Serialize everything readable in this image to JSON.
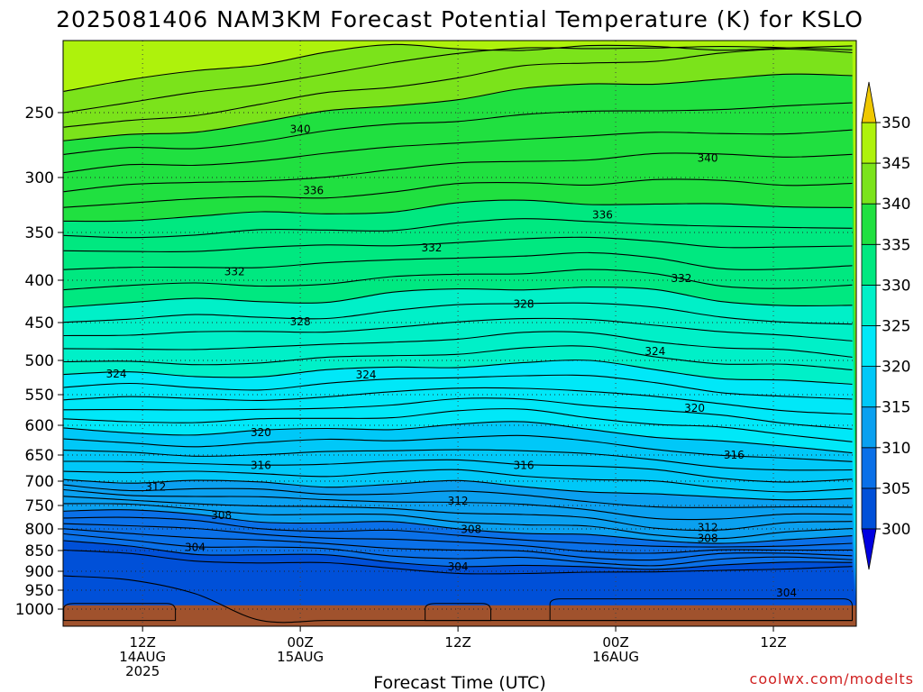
{
  "chart_data": {
    "type": "heatmap",
    "title": "2025081406 NAM3KM Forecast Potential Temperature (K) for KSLO",
    "xlabel": "Forecast Time (UTC)",
    "ylabel": "",
    "y_ticks": [
      250,
      300,
      350,
      400,
      450,
      500,
      550,
      600,
      650,
      700,
      750,
      800,
      850,
      900,
      950,
      1000
    ],
    "y_tick_labels": [
      "250",
      "300",
      "350",
      "400",
      "450",
      "500",
      "550",
      "600",
      "650",
      "700",
      "750",
      "800",
      "850",
      "900",
      "950",
      "1000"
    ],
    "ylim": [
      200,
      1030
    ],
    "x_range_hours": [
      0,
      60
    ],
    "x_ticks": [
      {
        "hour": 6,
        "line1": "12Z",
        "line2": "14AUG",
        "line3": "2025"
      },
      {
        "hour": 18,
        "line1": "00Z",
        "line2": "15AUG",
        "line3": ""
      },
      {
        "hour": 30,
        "line1": "12Z",
        "line2": "",
        "line3": ""
      },
      {
        "hour": 42,
        "line1": "00Z",
        "line2": "16AUG",
        "line3": ""
      },
      {
        "hour": 54,
        "line1": "12Z",
        "line2": "",
        "line3": ""
      }
    ],
    "colorbar": {
      "levels": [
        300,
        305,
        310,
        315,
        320,
        325,
        330,
        335,
        340,
        345,
        350
      ],
      "labels": [
        "300",
        "305",
        "310",
        "315",
        "320",
        "325",
        "330",
        "335",
        "340",
        "345",
        "350"
      ],
      "colors": [
        "#0000e0",
        "#0050d8",
        "#0a70e8",
        "#0aa0f0",
        "#00c8f8",
        "#00e8f8",
        "#00f0c8",
        "#00e880",
        "#20e040",
        "#7be31b",
        "#aef20c",
        "#f0f000",
        "#f0c800"
      ]
    },
    "contour_labels": [
      {
        "value": "340",
        "hour": 18,
        "p": 263
      },
      {
        "value": "336",
        "hour": 19,
        "p": 312
      },
      {
        "value": "336",
        "hour": 41,
        "p": 334
      },
      {
        "value": "340",
        "hour": 49,
        "p": 285
      },
      {
        "value": "332",
        "hour": 13,
        "p": 391
      },
      {
        "value": "332",
        "hour": 28,
        "p": 366
      },
      {
        "value": "332",
        "hour": 47,
        "p": 398
      },
      {
        "value": "328",
        "hour": 18,
        "p": 449
      },
      {
        "value": "328",
        "hour": 35,
        "p": 428
      },
      {
        "value": "324",
        "hour": 4,
        "p": 520
      },
      {
        "value": "324",
        "hour": 23,
        "p": 521
      },
      {
        "value": "324",
        "hour": 45,
        "p": 488
      },
      {
        "value": "320",
        "hour": 15,
        "p": 612
      },
      {
        "value": "320",
        "hour": 48,
        "p": 572
      },
      {
        "value": "316",
        "hour": 15,
        "p": 670
      },
      {
        "value": "316",
        "hour": 35,
        "p": 670
      },
      {
        "value": "316",
        "hour": 51,
        "p": 650
      },
      {
        "value": "312",
        "hour": 7,
        "p": 712
      },
      {
        "value": "312",
        "hour": 30,
        "p": 741
      },
      {
        "value": "312",
        "hour": 49,
        "p": 797
      },
      {
        "value": "308",
        "hour": 12,
        "p": 771
      },
      {
        "value": "308",
        "hour": 31,
        "p": 801
      },
      {
        "value": "308",
        "hour": 49,
        "p": 822
      },
      {
        "value": "304",
        "hour": 10,
        "p": 843
      },
      {
        "value": "304",
        "hour": 30,
        "p": 889
      },
      {
        "value": "304",
        "hour": 55,
        "p": 957
      }
    ],
    "contour_lines": [
      {
        "value": 345,
        "p": [
          232,
          226,
          219,
          211,
          203,
          200,
          200,
          200,
          200,
          200,
          200,
          200,
          200
        ]
      },
      {
        "value": 343,
        "p": [
          248,
          242,
          236,
          228,
          219,
          212,
          205,
          200,
          200,
          200,
          200,
          200,
          200
        ]
      },
      {
        "value": 341,
        "p": [
          262,
          256,
          251,
          244,
          236,
          229,
          222,
          216,
          212,
          208,
          205,
          203,
          202
        ]
      },
      {
        "value": 340,
        "p": [
          273,
          268,
          263,
          257,
          251,
          244,
          238,
          233,
          229,
          226,
          224,
          222,
          221
        ]
      },
      {
        "value": 339,
        "p": [
          283,
          279,
          276,
          271,
          266,
          259,
          255,
          252,
          250,
          248,
          247,
          245,
          243
        ]
      },
      {
        "value": 338,
        "p": [
          296,
          292,
          290,
          286,
          282,
          277,
          273,
          270,
          268,
          266,
          266,
          265,
          264
        ]
      },
      {
        "value": 337,
        "p": [
          312,
          307,
          305,
          303,
          299,
          294,
          290,
          287,
          285,
          283,
          283,
          282,
          282
        ]
      },
      {
        "value": 336,
        "p": [
          327,
          322,
          320,
          319,
          317,
          312,
          308,
          305,
          304,
          303,
          305,
          305,
          304
        ]
      },
      {
        "value": 335,
        "p": [
          341,
          337,
          335,
          334,
          332,
          329,
          325,
          322,
          322,
          324,
          326,
          326,
          326
        ]
      },
      {
        "value": 334,
        "p": [
          356,
          353,
          351,
          350,
          348,
          346,
          342,
          339,
          339,
          342,
          345,
          346,
          346
        ]
      },
      {
        "value": 333,
        "p": [
          372,
          369,
          368,
          367,
          364,
          363,
          360,
          357,
          356,
          359,
          364,
          366,
          366
        ]
      },
      {
        "value": 332,
        "p": [
          390,
          387,
          386,
          386,
          382,
          380,
          376,
          373,
          373,
          378,
          385,
          388,
          388
        ]
      },
      {
        "value": 331,
        "p": [
          410,
          407,
          405,
          405,
          403,
          399,
          394,
          390,
          390,
          396,
          404,
          408,
          409
        ]
      },
      {
        "value": 330,
        "p": [
          429,
          426,
          425,
          424,
          423,
          417,
          412,
          408,
          408,
          414,
          424,
          428,
          431
        ]
      },
      {
        "value": 329,
        "p": [
          447,
          444,
          444,
          444,
          442,
          437,
          431,
          426,
          426,
          433,
          444,
          449,
          451
        ]
      },
      {
        "value": 328,
        "p": [
          466,
          464,
          464,
          463,
          461,
          456,
          450,
          446,
          446,
          452,
          463,
          469,
          472
        ]
      },
      {
        "value": 327,
        "p": [
          485,
          484,
          485,
          483,
          480,
          475,
          470,
          465,
          465,
          472,
          483,
          490,
          494
        ]
      },
      {
        "value": 326,
        "p": [
          503,
          503,
          504,
          502,
          499,
          494,
          488,
          485,
          485,
          492,
          503,
          510,
          514
        ]
      },
      {
        "value": 325,
        "p": [
          520,
          521,
          522,
          520,
          517,
          512,
          506,
          503,
          504,
          512,
          524,
          531,
          536
        ]
      },
      {
        "value": 324,
        "p": [
          537,
          538,
          540,
          539,
          535,
          530,
          523,
          521,
          524,
          533,
          546,
          552,
          558
        ]
      },
      {
        "value": 323,
        "p": [
          555,
          556,
          558,
          557,
          553,
          547,
          541,
          540,
          544,
          554,
          567,
          574,
          580
        ]
      },
      {
        "value": 322,
        "p": [
          573,
          574,
          576,
          575,
          571,
          565,
          559,
          559,
          564,
          575,
          588,
          595,
          602
        ]
      },
      {
        "value": 321,
        "p": [
          591,
          592,
          594,
          593,
          589,
          583,
          578,
          578,
          584,
          596,
          608,
          616,
          623
        ]
      },
      {
        "value": 320,
        "p": [
          609,
          611,
          612,
          612,
          608,
          602,
          598,
          599,
          605,
          617,
          629,
          637,
          644
        ]
      },
      {
        "value": 319,
        "p": [
          628,
          630,
          631,
          631,
          627,
          623,
          619,
          620,
          627,
          639,
          650,
          657,
          664
        ]
      },
      {
        "value": 318,
        "p": [
          645,
          647,
          649,
          649,
          646,
          643,
          640,
          642,
          649,
          661,
          671,
          677,
          683
        ]
      },
      {
        "value": 317,
        "p": [
          662,
          664,
          667,
          668,
          666,
          664,
          661,
          664,
          671,
          683,
          692,
          697,
          701
        ]
      },
      {
        "value": 316,
        "p": [
          679,
          682,
          685,
          686,
          686,
          685,
          683,
          686,
          694,
          706,
          714,
          716,
          718
        ]
      },
      {
        "value": 315,
        "p": [
          695,
          699,
          703,
          705,
          706,
          706,
          705,
          709,
          718,
          730,
          735,
          735,
          735
        ]
      },
      {
        "value": 314,
        "p": [
          708,
          713,
          718,
          721,
          723,
          724,
          724,
          729,
          740,
          753,
          756,
          754,
          752
        ]
      },
      {
        "value": 313,
        "p": [
          720,
          725,
          731,
          735,
          738,
          741,
          743,
          749,
          761,
          775,
          777,
          773,
          769
        ]
      },
      {
        "value": 312,
        "p": [
          733,
          739,
          745,
          750,
          755,
          758,
          762,
          769,
          782,
          796,
          797,
          792,
          787
        ]
      },
      {
        "value": 311,
        "p": [
          745,
          751,
          758,
          764,
          771,
          775,
          780,
          788,
          801,
          814,
          815,
          810,
          804
        ]
      },
      {
        "value": 310,
        "p": [
          757,
          764,
          772,
          779,
          787,
          791,
          797,
          805,
          818,
          829,
          829,
          825,
          819
        ]
      },
      {
        "value": 309,
        "p": [
          770,
          778,
          787,
          795,
          803,
          808,
          815,
          822,
          834,
          842,
          842,
          838,
          832
        ]
      },
      {
        "value": 308,
        "p": [
          784,
          793,
          803,
          812,
          819,
          824,
          832,
          840,
          850,
          855,
          853,
          849,
          843
        ]
      },
      {
        "value": 307,
        "p": [
          799,
          809,
          820,
          828,
          835,
          841,
          849,
          857,
          865,
          867,
          863,
          860,
          855
        ]
      },
      {
        "value": 306,
        "p": [
          815,
          826,
          836,
          844,
          851,
          858,
          866,
          874,
          879,
          879,
          874,
          871,
          867
        ]
      },
      {
        "value": 305,
        "p": [
          832,
          843,
          852,
          860,
          868,
          875,
          883,
          891,
          892,
          890,
          885,
          882,
          878
        ]
      },
      {
        "value": 304,
        "p": [
          852,
          863,
          870,
          877,
          885,
          893,
          901,
          907,
          905,
          901,
          896,
          894,
          891
        ]
      },
      {
        "value": 303,
        "p": [
          912,
          928,
          958,
          1030,
          1030,
          1030,
          1030,
          1030,
          1030,
          1030,
          1030,
          1030,
          1030
        ]
      }
    ],
    "low_pockets": [
      {
        "value": 302,
        "hour_start": 0,
        "hour_end": 8.5,
        "p_top": 985
      },
      {
        "value": 302,
        "hour_start": 27.5,
        "hour_end": 32.5,
        "p_top": 985
      },
      {
        "value": 303,
        "hour_start": 37,
        "hour_end": 60,
        "p_top": 973
      }
    ],
    "ground_color": "#a0522d",
    "ground_p": 990
  },
  "credit": "coolwx.com/modelts"
}
